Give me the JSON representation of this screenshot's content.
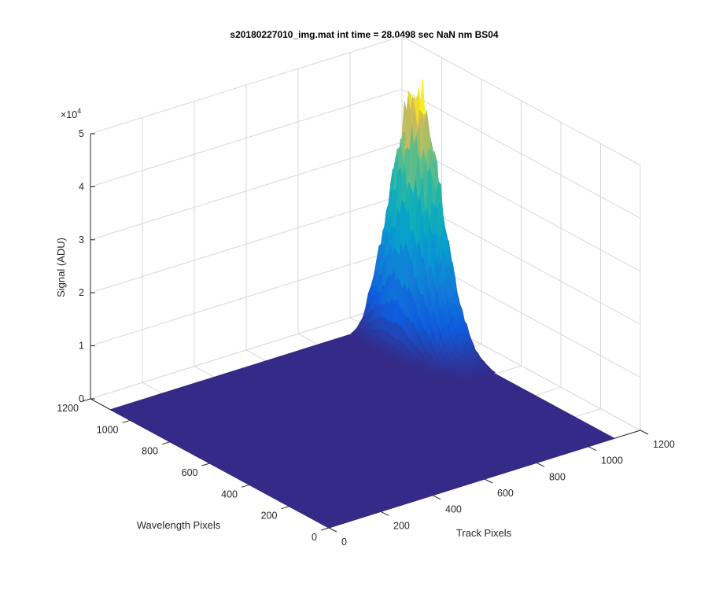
{
  "chart_data": {
    "type": "surface",
    "title": "s20180227010_img.mat int time = 28.0498 sec  NaN nm BS04",
    "xlabel": "Track Pixels",
    "ylabel": "Wavelength Pixels",
    "zlabel": "Signal (ADU)",
    "x_ticks": [
      "0",
      "200",
      "400",
      "600",
      "800",
      "1000",
      "1200"
    ],
    "y_ticks": [
      "0",
      "200",
      "400",
      "600",
      "800",
      "1000",
      "1200"
    ],
    "z_ticks": [
      "0",
      "1",
      "2",
      "3",
      "4",
      "5"
    ],
    "z_exponent_label": "×10",
    "z_exponent_power": "4",
    "xlim": [
      0,
      1200
    ],
    "ylim": [
      0,
      1200
    ],
    "zlim": [
      0,
      50000
    ],
    "grid": true,
    "colormap": "parula",
    "baseline_signal": 0,
    "peak": {
      "x_center": 1050,
      "y_center": 930,
      "x_width": 45,
      "y_width": 110,
      "max_signal": 46000
    },
    "secondary_bump": {
      "x_center": 400,
      "y_center": 1150,
      "max_signal": 1000
    },
    "colors": {
      "surface_base": "#352a87",
      "peak_top": "#f9fb0e",
      "grid": "#d8d8d8",
      "axis": "#262626"
    }
  }
}
